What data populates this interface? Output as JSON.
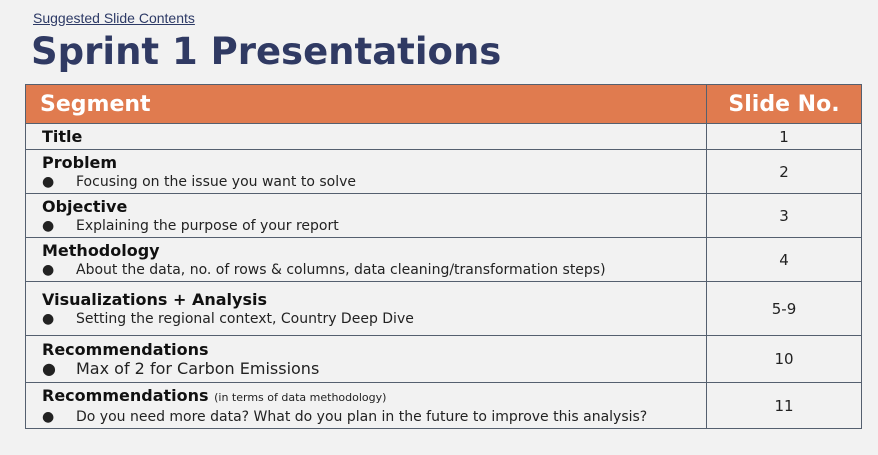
{
  "header": {
    "link_text": "Suggested Slide Contents",
    "title": "Sprint 1 Presentations"
  },
  "table": {
    "columns": [
      "Segment",
      "Slide No."
    ],
    "rows": [
      {
        "title": "Title",
        "note": "",
        "bullet": "",
        "slide": "1"
      },
      {
        "title": "Problem",
        "note": "",
        "bullet": "Focusing on the issue you want to solve",
        "slide": "2"
      },
      {
        "title": "Objective",
        "note": "",
        "bullet": "Explaining the purpose of your report",
        "slide": "3"
      },
      {
        "title": "Methodology",
        "note": "",
        "bullet": "About the data, no. of rows & columns, data cleaning/transformation steps)",
        "slide": "4"
      },
      {
        "title": "Visualizations + Analysis",
        "note": "",
        "bullet": "Setting the regional context, Country Deep Dive",
        "slide": "5-9"
      },
      {
        "title": "Recommendations",
        "note": "",
        "bullet": "Max of 2 for Carbon Emissions",
        "slide": "10"
      },
      {
        "title": "Recommendations",
        "note": "(in terms of data methodology)",
        "bullet": "Do you need more data? What do you plan in the future to improve this analysis?",
        "slide": "11"
      }
    ]
  },
  "bullet_glyph": "●"
}
